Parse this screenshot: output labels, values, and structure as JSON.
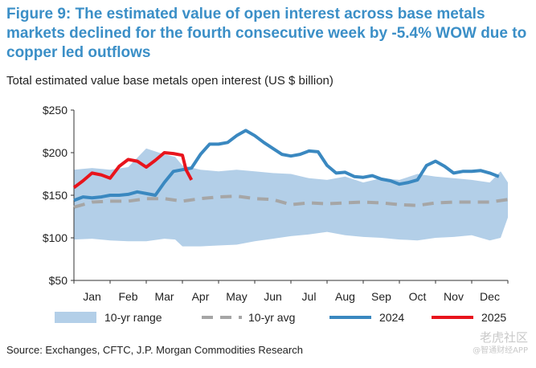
{
  "title": "Figure 9: The estimated value of open interest across base metals markets declined for the fourth consecutive week by -5.4% WOW due to copper led outflows",
  "subtitle": "Total estimated value base metals open interest (US $ billion)",
  "source": "Source: Exchanges, CFTC, J.P. Morgan Commodities Research",
  "watermark": {
    "line1": "老虎社区",
    "line2": "@智通财经APP"
  },
  "colors": {
    "title": "#3b8fc7",
    "range": "#b3cfe8",
    "avg": "#a6a6a6",
    "s2024": "#3a88c0",
    "s2025": "#e8141c"
  },
  "chart_data": {
    "type": "line",
    "categories": [
      "Jan",
      "Feb",
      "Mar",
      "Apr",
      "May",
      "Jun",
      "Jul",
      "Aug",
      "Sep",
      "Oct",
      "Nov",
      "Dec"
    ],
    "ylim": [
      50,
      250
    ],
    "yticks": [
      "$250",
      "$200",
      "$150",
      "$100",
      "$50"
    ],
    "ytick_values": [
      250,
      200,
      150,
      100,
      50
    ],
    "x_note": "x values are in months (0 = Jan, 12 = end of Dec)",
    "range_band": {
      "name": "10-yr range",
      "x": [
        0,
        0.5,
        1.0,
        1.5,
        2.0,
        2.5,
        2.8,
        3.0,
        3.5,
        4.0,
        4.5,
        5.0,
        5.5,
        6.0,
        6.5,
        7.0,
        7.5,
        8.0,
        8.5,
        9.0,
        9.5,
        10.0,
        10.5,
        11.0,
        11.5,
        11.8,
        12.0
      ],
      "upper": [
        180,
        182,
        180,
        183,
        205,
        198,
        195,
        185,
        180,
        178,
        180,
        178,
        176,
        175,
        170,
        168,
        172,
        165,
        170,
        168,
        175,
        172,
        170,
        168,
        165,
        178,
        165
      ],
      "lower": [
        98,
        99,
        97,
        96,
        96,
        99,
        98,
        90,
        90,
        91,
        92,
        96,
        99,
        102,
        104,
        107,
        103,
        101,
        100,
        98,
        97,
        100,
        101,
        103,
        97,
        100,
        124
      ]
    },
    "series": [
      {
        "name": "10-yr avg",
        "x": [
          0,
          0.5,
          1.0,
          1.5,
          2.0,
          2.5,
          3.0,
          3.5,
          4.0,
          4.5,
          5.0,
          5.5,
          6.0,
          6.5,
          7.0,
          7.5,
          8.0,
          8.5,
          9.0,
          9.5,
          10.0,
          10.5,
          11.0,
          11.5,
          12.0
        ],
        "values": [
          136,
          142,
          143,
          143,
          146,
          146,
          143,
          146,
          148,
          149,
          146,
          145,
          139,
          141,
          140,
          141,
          142,
          141,
          139,
          138,
          141,
          142,
          142,
          142,
          145
        ]
      },
      {
        "name": "2024",
        "x": [
          0,
          0.25,
          0.5,
          0.75,
          1.0,
          1.25,
          1.5,
          1.75,
          2.0,
          2.25,
          2.5,
          2.75,
          3.0,
          3.25,
          3.5,
          3.75,
          4.0,
          4.25,
          4.5,
          4.75,
          5.0,
          5.25,
          5.5,
          5.75,
          6.0,
          6.25,
          6.5,
          6.75,
          7.0,
          7.25,
          7.5,
          7.75,
          8.0,
          8.25,
          8.5,
          8.75,
          9.0,
          9.25,
          9.5,
          9.75,
          10.0,
          10.25,
          10.5,
          10.75,
          11.0,
          11.25,
          11.5,
          11.75
        ],
        "values": [
          144,
          148,
          147,
          148,
          150,
          150,
          151,
          154,
          152,
          150,
          165,
          178,
          180,
          182,
          198,
          210,
          210,
          212,
          220,
          226,
          220,
          212,
          205,
          198,
          196,
          198,
          202,
          201,
          185,
          176,
          177,
          172,
          171,
          173,
          169,
          167,
          163,
          165,
          168,
          185,
          190,
          184,
          176,
          178,
          178,
          179,
          176,
          172
        ]
      },
      {
        "name": "2025",
        "x": [
          0,
          0.25,
          0.5,
          0.75,
          1.0,
          1.25,
          1.5,
          1.75,
          2.0,
          2.25,
          2.5,
          2.75,
          3.0,
          3.1,
          3.25
        ],
        "values": [
          159,
          167,
          176,
          174,
          170,
          184,
          192,
          190,
          183,
          191,
          200,
          199,
          197,
          180,
          168
        ]
      }
    ],
    "legend": {
      "placement": "bottom",
      "entries": [
        "10-yr range",
        "10-yr avg",
        "2024",
        "2025"
      ]
    }
  }
}
